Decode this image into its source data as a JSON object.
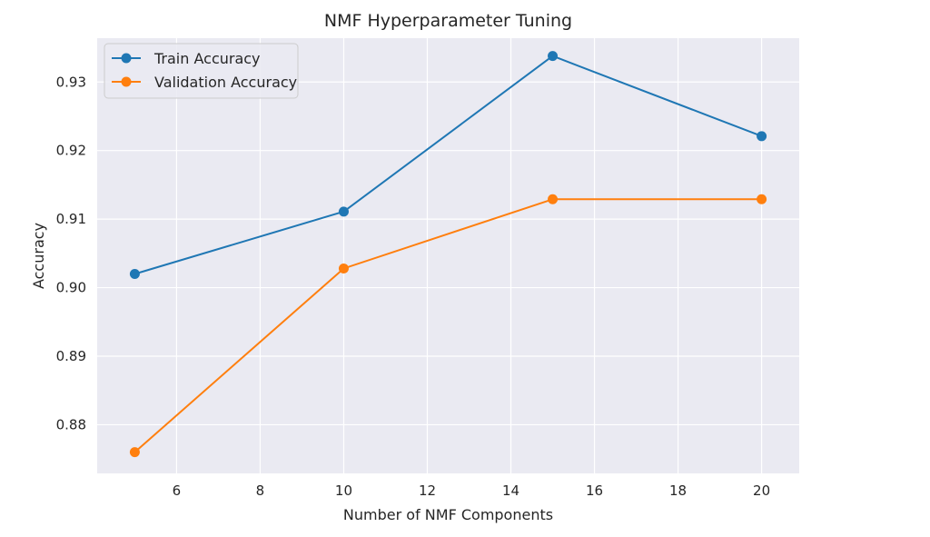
{
  "chart_data": {
    "type": "line",
    "title": "NMF Hyperparameter Tuning",
    "xlabel": "Number of NMF Components",
    "ylabel": "Accuracy",
    "x": [
      5,
      10,
      15,
      20
    ],
    "series": [
      {
        "name": "Train Accuracy",
        "values": [
          0.902,
          0.9111,
          0.9338,
          0.9221
        ],
        "color": "#1f77b4"
      },
      {
        "name": "Validation Accuracy",
        "values": [
          0.876,
          0.9028,
          0.9129,
          0.9129
        ],
        "color": "#ff7f0e"
      }
    ],
    "xlim": [
      4.1,
      20.9
    ],
    "ylim": [
      0.8729,
      0.9364
    ],
    "xticks": [
      6,
      8,
      10,
      12,
      14,
      16,
      18,
      20
    ],
    "yticks": [
      0.88,
      0.89,
      0.9,
      0.91,
      0.92,
      0.93
    ],
    "xtick_labels": [
      "6",
      "8",
      "10",
      "12",
      "14",
      "16",
      "18",
      "20"
    ],
    "ytick_labels": [
      "0.88",
      "0.89",
      "0.90",
      "0.91",
      "0.92",
      "0.93"
    ],
    "grid": true,
    "legend_position": "top-left",
    "background_color": "#eaeaf2",
    "grid_color": "#ffffff",
    "marker": "circle"
  }
}
